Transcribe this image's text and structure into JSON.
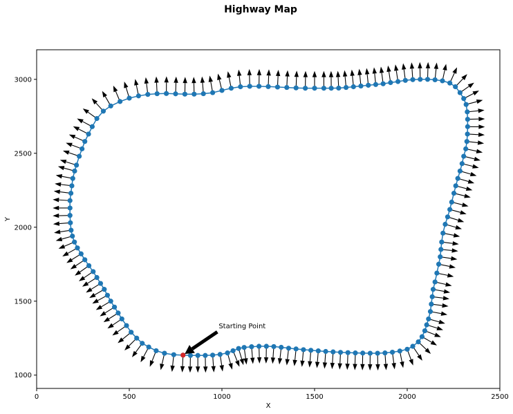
{
  "chart_data": {
    "type": "line",
    "title": "Highway Map",
    "xlabel": "X",
    "ylabel": "Y",
    "xlim": [
      0,
      2500
    ],
    "ylim": [
      910,
      3200
    ],
    "xticks": [
      0,
      500,
      1000,
      1500,
      2000,
      2500
    ],
    "yticks": [
      1000,
      1500,
      2000,
      2500,
      3000
    ],
    "grid": false,
    "legend": "none",
    "colors": {
      "route": "#1f77b4",
      "start": "#d62728",
      "arrow": "#000000"
    },
    "series": [
      {
        "style": "line+markers with outward direction arrows",
        "points": [
          [
            790,
            1135
          ],
          [
            830,
            1133
          ],
          [
            870,
            1133
          ],
          [
            910,
            1133
          ],
          [
            950,
            1135
          ],
          [
            990,
            1140
          ],
          [
            1030,
            1150
          ],
          [
            1060,
            1165
          ],
          [
            1090,
            1180
          ],
          [
            1120,
            1187
          ],
          [
            1160,
            1192
          ],
          [
            1200,
            1195
          ],
          [
            1240,
            1195
          ],
          [
            1280,
            1193
          ],
          [
            1320,
            1188
          ],
          [
            1360,
            1182
          ],
          [
            1400,
            1177
          ],
          [
            1440,
            1172
          ],
          [
            1480,
            1168
          ],
          [
            1520,
            1164
          ],
          [
            1560,
            1160
          ],
          [
            1600,
            1157
          ],
          [
            1640,
            1154
          ],
          [
            1680,
            1152
          ],
          [
            1720,
            1150
          ],
          [
            1760,
            1149
          ],
          [
            1800,
            1148
          ],
          [
            1840,
            1148
          ],
          [
            1880,
            1150
          ],
          [
            1920,
            1155
          ],
          [
            1960,
            1163
          ],
          [
            2000,
            1175
          ],
          [
            2030,
            1195
          ],
          [
            2060,
            1225
          ],
          [
            2080,
            1260
          ],
          [
            2095,
            1300
          ],
          [
            2105,
            1340
          ],
          [
            2115,
            1380
          ],
          [
            2125,
            1430
          ],
          [
            2130,
            1480
          ],
          [
            2135,
            1530
          ],
          [
            2140,
            1580
          ],
          [
            2150,
            1630
          ],
          [
            2160,
            1690
          ],
          [
            2170,
            1750
          ],
          [
            2178,
            1800
          ],
          [
            2182,
            1850
          ],
          [
            2186,
            1900
          ],
          [
            2193,
            1960
          ],
          [
            2205,
            2020
          ],
          [
            2218,
            2070
          ],
          [
            2230,
            2120
          ],
          [
            2240,
            2170
          ],
          [
            2252,
            2230
          ],
          [
            2262,
            2280
          ],
          [
            2273,
            2330
          ],
          [
            2285,
            2380
          ],
          [
            2296,
            2430
          ],
          [
            2305,
            2480
          ],
          [
            2316,
            2530
          ],
          [
            2322,
            2580
          ],
          [
            2325,
            2630
          ],
          [
            2326,
            2680
          ],
          [
            2326,
            2730
          ],
          [
            2324,
            2780
          ],
          [
            2318,
            2830
          ],
          [
            2305,
            2870
          ],
          [
            2285,
            2910
          ],
          [
            2260,
            2950
          ],
          [
            2230,
            2975
          ],
          [
            2190,
            2990
          ],
          [
            2150,
            2997
          ],
          [
            2110,
            3000
          ],
          [
            2070,
            3000
          ],
          [
            2030,
            2998
          ],
          [
            1990,
            2993
          ],
          [
            1950,
            2985
          ],
          [
            1910,
            2978
          ],
          [
            1870,
            2970
          ],
          [
            1830,
            2965
          ],
          [
            1790,
            2960
          ],
          [
            1750,
            2955
          ],
          [
            1710,
            2950
          ],
          [
            1670,
            2945
          ],
          [
            1630,
            2941
          ],
          [
            1590,
            2940
          ],
          [
            1550,
            2940
          ],
          [
            1500,
            2940
          ],
          [
            1450,
            2940
          ],
          [
            1400,
            2942
          ],
          [
            1350,
            2945
          ],
          [
            1300,
            2948
          ],
          [
            1250,
            2951
          ],
          [
            1200,
            2953
          ],
          [
            1150,
            2953
          ],
          [
            1100,
            2950
          ],
          [
            1050,
            2940
          ],
          [
            1000,
            2925
          ],
          [
            950,
            2910
          ],
          [
            900,
            2903
          ],
          [
            850,
            2900
          ],
          [
            800,
            2900
          ],
          [
            750,
            2902
          ],
          [
            700,
            2904
          ],
          [
            650,
            2903
          ],
          [
            600,
            2898
          ],
          [
            550,
            2888
          ],
          [
            500,
            2873
          ],
          [
            450,
            2850
          ],
          [
            400,
            2820
          ],
          [
            360,
            2785
          ],
          [
            325,
            2735
          ],
          [
            300,
            2680
          ],
          [
            280,
            2630
          ],
          [
            260,
            2580
          ],
          [
            245,
            2530
          ],
          [
            230,
            2480
          ],
          [
            215,
            2420
          ],
          [
            205,
            2380
          ],
          [
            195,
            2330
          ],
          [
            190,
            2280
          ],
          [
            185,
            2230
          ],
          [
            180,
            2180
          ],
          [
            180,
            2130
          ],
          [
            180,
            2080
          ],
          [
            182,
            2030
          ],
          [
            186,
            1980
          ],
          [
            193,
            1940
          ],
          [
            204,
            1900
          ],
          [
            220,
            1860
          ],
          [
            240,
            1820
          ],
          [
            260,
            1780
          ],
          [
            282,
            1740
          ],
          [
            305,
            1700
          ],
          [
            325,
            1660
          ],
          [
            345,
            1620
          ],
          [
            365,
            1580
          ],
          [
            382,
            1540
          ],
          [
            400,
            1500
          ],
          [
            420,
            1460
          ],
          [
            440,
            1420
          ],
          [
            460,
            1380
          ],
          [
            485,
            1335
          ],
          [
            510,
            1290
          ],
          [
            540,
            1250
          ],
          [
            570,
            1215
          ],
          [
            605,
            1190
          ],
          [
            645,
            1165
          ],
          [
            690,
            1148
          ],
          [
            740,
            1138
          ]
        ]
      }
    ],
    "start_point": {
      "x": 790,
      "y": 1135
    },
    "annotations": [
      {
        "text": "Starting Point",
        "xy": [
          790,
          1135
        ],
        "xytext": [
          990,
          1330
        ]
      }
    ]
  }
}
